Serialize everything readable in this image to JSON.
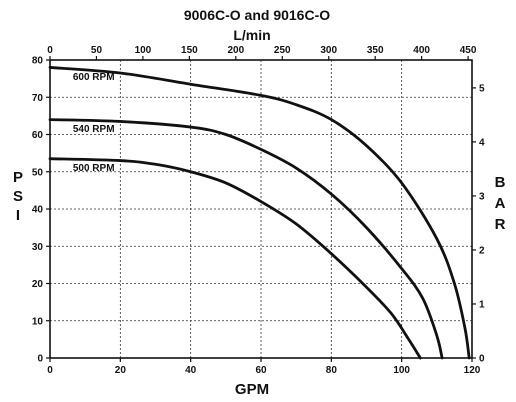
{
  "chart_data": {
    "type": "line",
    "title": "9006C-O and 9016C-O",
    "x_bottom": {
      "label": "GPM",
      "lim": [
        0,
        120
      ],
      "ticks": [
        0,
        20,
        40,
        60,
        80,
        100,
        120
      ]
    },
    "x_top": {
      "label": "L/min",
      "lim": [
        0,
        454.2
      ],
      "ticks": [
        0,
        50,
        100,
        150,
        200,
        250,
        300,
        350,
        400,
        450
      ]
    },
    "y_left": {
      "label": [
        "P",
        "S",
        "I"
      ],
      "lim": [
        0,
        80
      ],
      "ticks": [
        0,
        10,
        20,
        30,
        40,
        50,
        60,
        70,
        80
      ]
    },
    "y_right": {
      "label": [
        "B",
        "A",
        "R"
      ],
      "lim": [
        0,
        5.516
      ],
      "ticks": [
        0,
        1,
        2,
        3,
        4,
        5
      ]
    },
    "grid": true,
    "series": [
      {
        "name": "600 RPM",
        "x": [
          0,
          20,
          40,
          60,
          70,
          80,
          90,
          100,
          110,
          115,
          118,
          119.2
        ],
        "y": [
          78,
          76.5,
          73.5,
          70.5,
          68,
          64,
          57,
          47,
          32,
          20,
          8,
          0
        ]
      },
      {
        "name": "540 RPM",
        "x": [
          0,
          20,
          40,
          50,
          60,
          70,
          80,
          90,
          100,
          106,
          110,
          111.5
        ],
        "y": [
          64,
          63.5,
          62,
          60,
          56,
          51,
          44,
          35,
          24,
          16,
          6,
          0
        ]
      },
      {
        "name": "500 RPM",
        "x": [
          0,
          20,
          30,
          40,
          50,
          60,
          70,
          80,
          90,
          97,
          102,
          105.3
        ],
        "y": [
          53.5,
          53,
          52,
          50,
          47,
          42,
          36,
          28,
          19,
          12,
          5,
          0
        ]
      }
    ]
  }
}
